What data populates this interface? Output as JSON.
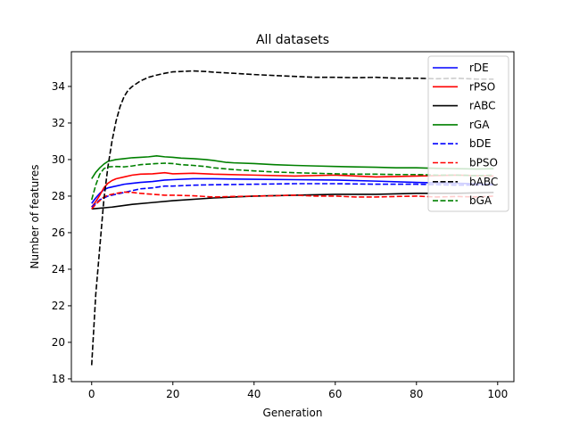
{
  "chart_data": {
    "type": "line",
    "title": "All datasets",
    "xlabel": "Generation",
    "ylabel": "Number of features",
    "xlim": [
      -5,
      104
    ],
    "ylim": [
      17.85,
      35.9
    ],
    "xticks": [
      0,
      20,
      40,
      60,
      80,
      100
    ],
    "yticks": [
      18,
      20,
      22,
      24,
      26,
      28,
      30,
      32,
      34
    ],
    "grid": false,
    "legend_position": "top-right",
    "series": [
      {
        "name": "rDE",
        "color": "#0000ff",
        "style": "solid",
        "x": [
          0,
          1,
          2,
          3,
          4,
          6,
          8,
          10,
          12,
          15,
          18,
          20,
          25,
          30,
          40,
          50,
          60,
          70,
          80,
          90,
          99
        ],
        "values": [
          27.6,
          27.9,
          28.15,
          28.35,
          28.45,
          28.55,
          28.65,
          28.7,
          28.75,
          28.8,
          28.88,
          28.9,
          28.95,
          28.95,
          28.92,
          28.9,
          28.88,
          28.82,
          28.75,
          28.7,
          28.65
        ]
      },
      {
        "name": "rPSO",
        "color": "#ff0000",
        "style": "solid",
        "x": [
          0,
          1,
          2,
          3,
          4,
          5,
          6,
          8,
          10,
          12,
          15,
          18,
          20,
          25,
          30,
          40,
          50,
          60,
          70,
          80,
          90,
          99
        ],
        "values": [
          27.4,
          27.7,
          28.05,
          28.45,
          28.7,
          28.85,
          28.95,
          29.05,
          29.15,
          29.2,
          29.22,
          29.28,
          29.22,
          29.25,
          29.2,
          29.15,
          29.1,
          29.15,
          29.05,
          29.1,
          29.15,
          29.1
        ]
      },
      {
        "name": "rABC",
        "color": "#000000",
        "style": "solid",
        "x": [
          0,
          5,
          10,
          15,
          20,
          30,
          40,
          50,
          60,
          70,
          80,
          90,
          99
        ],
        "values": [
          27.3,
          27.4,
          27.55,
          27.65,
          27.75,
          27.9,
          28.0,
          28.05,
          28.1,
          28.1,
          28.15,
          28.15,
          28.2
        ]
      },
      {
        "name": "rGA",
        "color": "#008000",
        "style": "solid",
        "x": [
          0,
          1,
          2,
          3,
          4,
          6,
          8,
          10,
          12,
          14,
          16,
          18,
          20,
          22,
          25,
          28,
          30,
          33,
          35,
          40,
          45,
          50,
          55,
          60,
          65,
          70,
          75,
          80,
          85,
          90,
          95,
          99
        ],
        "values": [
          28.95,
          29.3,
          29.55,
          29.75,
          29.9,
          30.0,
          30.05,
          30.1,
          30.12,
          30.15,
          30.2,
          30.15,
          30.12,
          30.08,
          30.05,
          30.0,
          29.95,
          29.85,
          29.82,
          29.78,
          29.72,
          29.68,
          29.65,
          29.62,
          29.6,
          29.58,
          29.55,
          29.55,
          29.52,
          29.5,
          29.48,
          29.5
        ]
      },
      {
        "name": "bDE",
        "color": "#0000ff",
        "style": "dashed",
        "x": [
          0,
          1,
          2,
          3,
          4,
          6,
          8,
          10,
          12,
          15,
          18,
          20,
          25,
          30,
          40,
          50,
          60,
          70,
          80,
          90,
          99
        ],
        "values": [
          27.4,
          27.6,
          27.8,
          27.9,
          28.0,
          28.1,
          28.2,
          28.3,
          28.4,
          28.45,
          28.55,
          28.55,
          28.6,
          28.62,
          28.65,
          28.68,
          28.68,
          28.65,
          28.65,
          28.6,
          28.62
        ]
      },
      {
        "name": "bPSO",
        "color": "#ff0000",
        "style": "dashed",
        "x": [
          0,
          1,
          2,
          3,
          4,
          6,
          8,
          10,
          12,
          15,
          18,
          20,
          25,
          30,
          35,
          40,
          45,
          50,
          55,
          60,
          65,
          70,
          75,
          80,
          85,
          90,
          95,
          99
        ],
        "values": [
          27.3,
          27.55,
          27.75,
          27.95,
          28.05,
          28.15,
          28.22,
          28.2,
          28.15,
          28.1,
          28.05,
          28.05,
          28.02,
          27.95,
          27.98,
          28.0,
          28.02,
          28.05,
          28.0,
          28.0,
          27.95,
          27.95,
          27.98,
          28.0,
          27.95,
          27.98,
          27.95,
          28.0
        ]
      },
      {
        "name": "bABC",
        "color": "#000000",
        "style": "dashed",
        "x": [
          0,
          1,
          2,
          3,
          4,
          5,
          6,
          7,
          8,
          9,
          10,
          12,
          14,
          16,
          18,
          20,
          22,
          25,
          28,
          30,
          35,
          40,
          45,
          50,
          55,
          60,
          65,
          70,
          75,
          80,
          85,
          90,
          95,
          99
        ],
        "values": [
          18.75,
          22.6,
          25.2,
          27.8,
          29.6,
          31.0,
          32.1,
          32.9,
          33.45,
          33.8,
          34.0,
          34.3,
          34.5,
          34.62,
          34.72,
          34.8,
          34.82,
          34.85,
          34.82,
          34.78,
          34.72,
          34.65,
          34.6,
          34.55,
          34.5,
          34.5,
          34.48,
          34.5,
          34.45,
          34.45,
          34.42,
          34.45,
          34.4,
          34.4
        ]
      },
      {
        "name": "bGA",
        "color": "#008000",
        "style": "dashed",
        "x": [
          0,
          1,
          2,
          3,
          4,
          6,
          8,
          10,
          12,
          14,
          16,
          18,
          20,
          22,
          25,
          28,
          30,
          35,
          40,
          45,
          50,
          55,
          60,
          65,
          70,
          75,
          80,
          85,
          90,
          95,
          99
        ],
        "values": [
          27.8,
          28.6,
          29.2,
          29.5,
          29.6,
          29.62,
          29.6,
          29.65,
          29.72,
          29.75,
          29.78,
          29.8,
          29.78,
          29.72,
          29.68,
          29.62,
          29.55,
          29.45,
          29.38,
          29.32,
          29.28,
          29.25,
          29.22,
          29.2,
          29.2,
          29.18,
          29.18,
          29.15,
          29.15,
          29.12,
          29.15
        ]
      }
    ]
  }
}
